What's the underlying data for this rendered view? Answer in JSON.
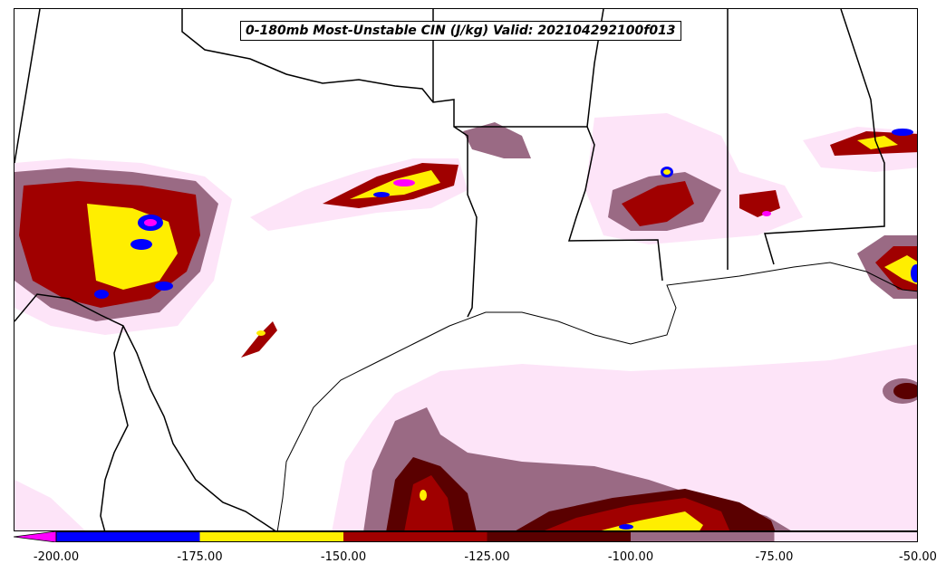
{
  "title": "0-180mb Most-Unstable CIN (J/kg) Valid: 202104292100f013",
  "colorbar": {
    "bins": [
      {
        "from": -200,
        "to": -175,
        "color": "#0000ff"
      },
      {
        "from": -175,
        "to": -150,
        "color": "#ffee00"
      },
      {
        "from": -150,
        "to": -125,
        "color": "#a00000"
      },
      {
        "from": -125,
        "to": -100,
        "color": "#5a0000"
      },
      {
        "from": -100,
        "to": -75,
        "color": "#9a6a84"
      },
      {
        "from": -75,
        "to": -50,
        "color": "#fde4f8"
      }
    ],
    "extend_min_color": "#ff00ff",
    "tick_labels": [
      "-200.00",
      "-175.00",
      "-150.00",
      "-125.00",
      "-100.00",
      "-75.00",
      "-50.00"
    ]
  }
}
